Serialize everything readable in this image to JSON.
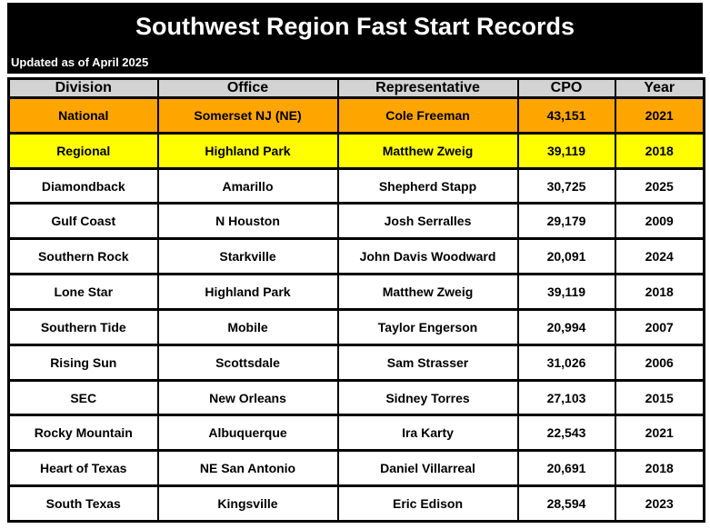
{
  "header": {
    "title": "Southwest Region Fast Start Records",
    "updated": "Updated as of April 2025",
    "background": "#000000",
    "text_color": "#FFFFFF"
  },
  "table": {
    "columns": [
      "Division",
      "Office",
      "Representative",
      "CPO",
      "Year"
    ],
    "colors": {
      "header_row": "#D3D3D3",
      "national_row": "#FFA500",
      "regional_row": "#FFFF00",
      "default_row": "#FFFFFF",
      "border": "#000000"
    },
    "rows": [
      {
        "division": "National",
        "office": "Somerset NJ (NE)",
        "representative": "Cole Freeman",
        "cpo": "43,151",
        "year": "2021",
        "highlight": "national"
      },
      {
        "division": "Regional",
        "office": "Highland Park",
        "representative": "Matthew Zweig",
        "cpo": "39,119",
        "year": "2018",
        "highlight": "regional"
      },
      {
        "division": "Diamondback",
        "office": "Amarillo",
        "representative": "Shepherd Stapp",
        "cpo": "30,725",
        "year": "2025"
      },
      {
        "division": "Gulf Coast",
        "office": "N Houston",
        "representative": "Josh Serralles",
        "cpo": "29,179",
        "year": "2009"
      },
      {
        "division": "Southern Rock",
        "office": "Starkville",
        "representative": "John Davis Woodward",
        "cpo": "20,091",
        "year": "2024"
      },
      {
        "division": "Lone Star",
        "office": "Highland Park",
        "representative": "Matthew Zweig",
        "cpo": "39,119",
        "year": "2018"
      },
      {
        "division": "Southern Tide",
        "office": "Mobile",
        "representative": "Taylor Engerson",
        "cpo": "20,994",
        "year": "2007"
      },
      {
        "division": "Rising Sun",
        "office": "Scottsdale",
        "representative": "Sam Strasser",
        "cpo": "31,026",
        "year": "2006"
      },
      {
        "division": "SEC",
        "office": "New Orleans",
        "representative": "Sidney Torres",
        "cpo": "27,103",
        "year": "2015"
      },
      {
        "division": "Rocky Mountain",
        "office": "Albuquerque",
        "representative": "Ira Karty",
        "cpo": "22,543",
        "year": "2021"
      },
      {
        "division": "Heart of Texas",
        "office": "NE San Antonio",
        "representative": "Daniel Villarreal",
        "cpo": "20,691",
        "year": "2018"
      },
      {
        "division": "South Texas",
        "office": "Kingsville",
        "representative": "Eric Edison",
        "cpo": "28,594",
        "year": "2023"
      }
    ]
  }
}
